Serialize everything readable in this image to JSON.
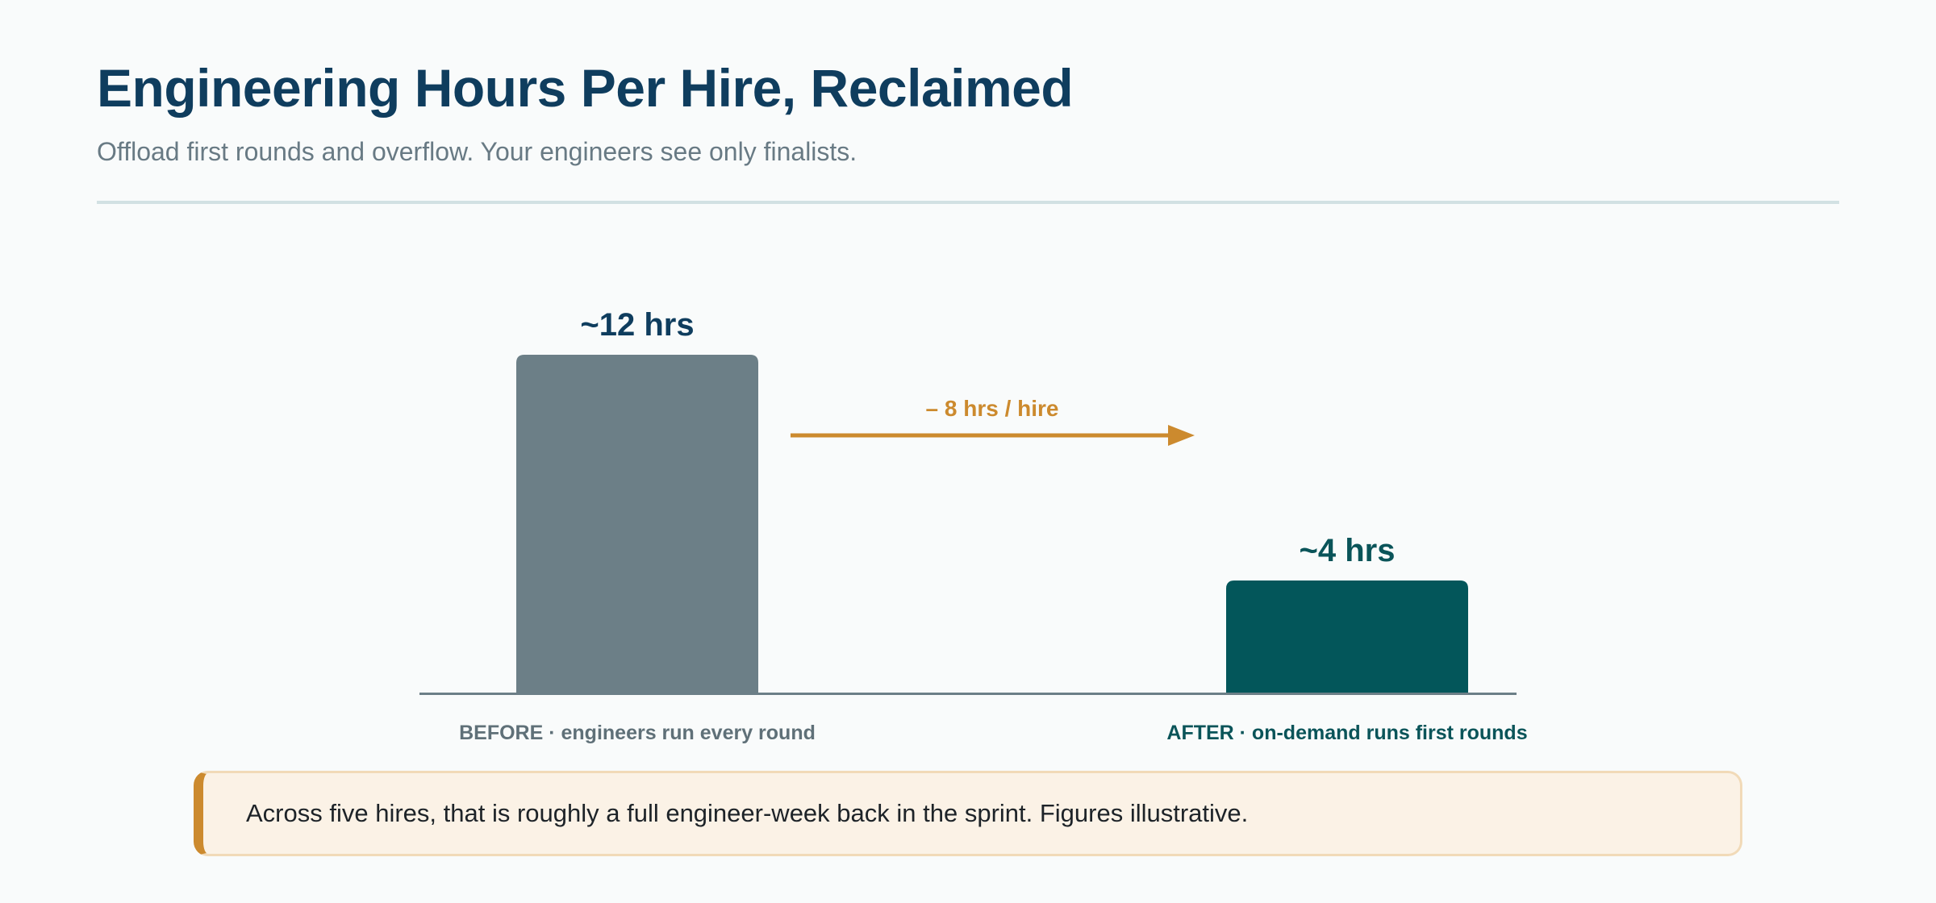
{
  "title": "Engineering Hours Per Hire, Reclaimed",
  "subtitle": "Offload first rounds and overflow. Your engineers see only finalists.",
  "chart_data": {
    "type": "bar",
    "categories": [
      "BEFORE · engineers run every round",
      "AFTER · on-demand runs first rounds"
    ],
    "values": [
      12,
      4
    ],
    "value_labels": [
      "~12 hrs",
      "~4 hrs"
    ],
    "colors": [
      "#6c7f87",
      "#03565a"
    ],
    "label_colors": [
      "#0f3d5e",
      "#0a5459"
    ],
    "category_colors": [
      "#5f7078",
      "#0a5459"
    ],
    "ylim": [
      0,
      12
    ],
    "annotation": {
      "text": "– 8 hrs / hire",
      "color": "#cc8a2e"
    }
  },
  "callout": {
    "text": "Across five hires, that is roughly a full engineer-week back in the sprint. Figures illustrative.",
    "accent": "#cc8a2e"
  }
}
